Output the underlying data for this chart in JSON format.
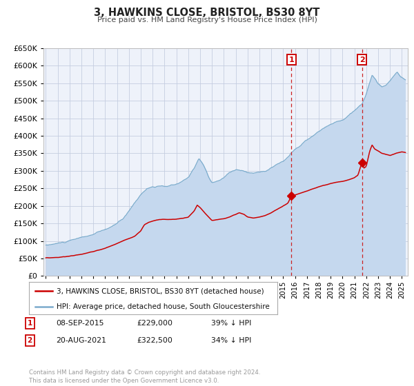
{
  "title": "3, HAWKINS CLOSE, BRISTOL, BS30 8YT",
  "subtitle": "Price paid vs. HM Land Registry's House Price Index (HPI)",
  "red_label": "3, HAWKINS CLOSE, BRISTOL, BS30 8YT (detached house)",
  "blue_label": "HPI: Average price, detached house, South Gloucestershire",
  "annotation1_date": "08-SEP-2015",
  "annotation1_price": "£229,000",
  "annotation1_pct": "39% ↓ HPI",
  "annotation2_date": "20-AUG-2021",
  "annotation2_price": "£322,500",
  "annotation2_pct": "34% ↓ HPI",
  "vline1_x": 2015.69,
  "vline2_x": 2021.64,
  "point1_x": 2015.69,
  "point1_y": 229000,
  "point2_x": 2021.64,
  "point2_y": 322500,
  "ylim": [
    0,
    650000
  ],
  "xlim": [
    1994.8,
    2025.5
  ],
  "yticks": [
    0,
    50000,
    100000,
    150000,
    200000,
    250000,
    300000,
    350000,
    400000,
    450000,
    500000,
    550000,
    600000,
    650000
  ],
  "background_color": "#ffffff",
  "plot_bg_color": "#eef2fa",
  "grid_color": "#c5cde0",
  "red_color": "#cc0000",
  "blue_color": "#7aabcc",
  "blue_fill_color": "#c5d8ee",
  "vline_color": "#cc2222",
  "footer_text": "Contains HM Land Registry data © Crown copyright and database right 2024.\nThis data is licensed under the Open Government Licence v3.0.",
  "copyright_color": "#999999"
}
